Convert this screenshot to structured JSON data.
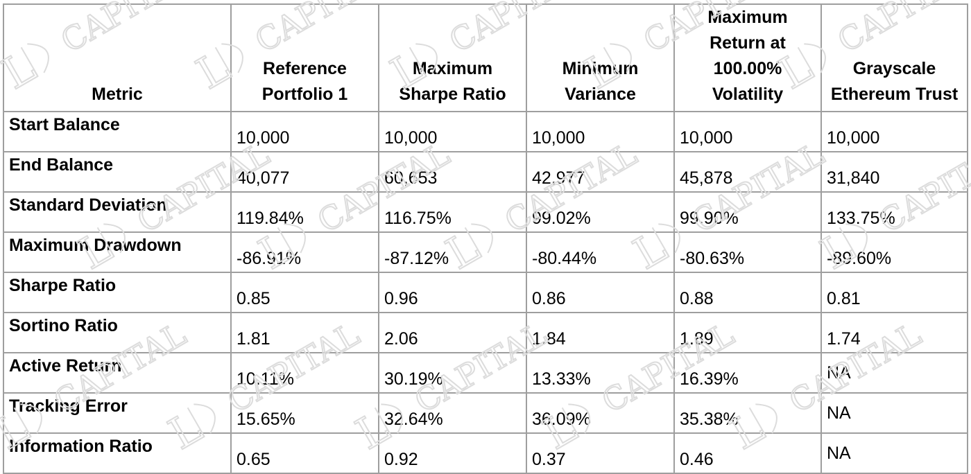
{
  "table": {
    "headers": [
      "Metric",
      "Reference Portfolio 1",
      "Maximum Sharpe Ratio",
      "Minimum Variance",
      "Maximum Return at 100.00% Volatility",
      "Grayscale Ethereum Trust"
    ],
    "rows": [
      {
        "metric": "Start Balance",
        "values": [
          "10,000",
          "10,000",
          "10,000",
          "10,000",
          "10,000"
        ]
      },
      {
        "metric": "End Balance",
        "values": [
          "40,077",
          "60,653",
          "42,977",
          "45,878",
          "31,840"
        ]
      },
      {
        "metric": "Standard Deviation",
        "values": [
          "119.84%",
          "116.75%",
          "99.02%",
          "99.90%",
          "133.75%"
        ]
      },
      {
        "metric": "Maximum Drawdown",
        "values": [
          "-86.91%",
          "-87.12%",
          "-80.44%",
          "-80.63%",
          "-89.60%"
        ]
      },
      {
        "metric": "Sharpe Ratio",
        "values": [
          "0.85",
          "0.96",
          "0.86",
          "0.88",
          "0.81"
        ]
      },
      {
        "metric": "Sortino Ratio",
        "values": [
          "1.81",
          "2.06",
          "1.84",
          "1.89",
          "1.74"
        ]
      },
      {
        "metric": "Active Return",
        "values": [
          "10.11%",
          "30.19%",
          "13.33%",
          "16.39%",
          "NA"
        ]
      },
      {
        "metric": "Tracking Error",
        "values": [
          "15.65%",
          "32.64%",
          "36.09%",
          "35.38%",
          "NA"
        ]
      },
      {
        "metric": "Information Ratio",
        "values": [
          "0.65",
          "0.92",
          "0.37",
          "0.46",
          "NA"
        ]
      }
    ]
  },
  "watermark": {
    "text": "LD CAPITAL",
    "color": "#dcdcdc"
  }
}
